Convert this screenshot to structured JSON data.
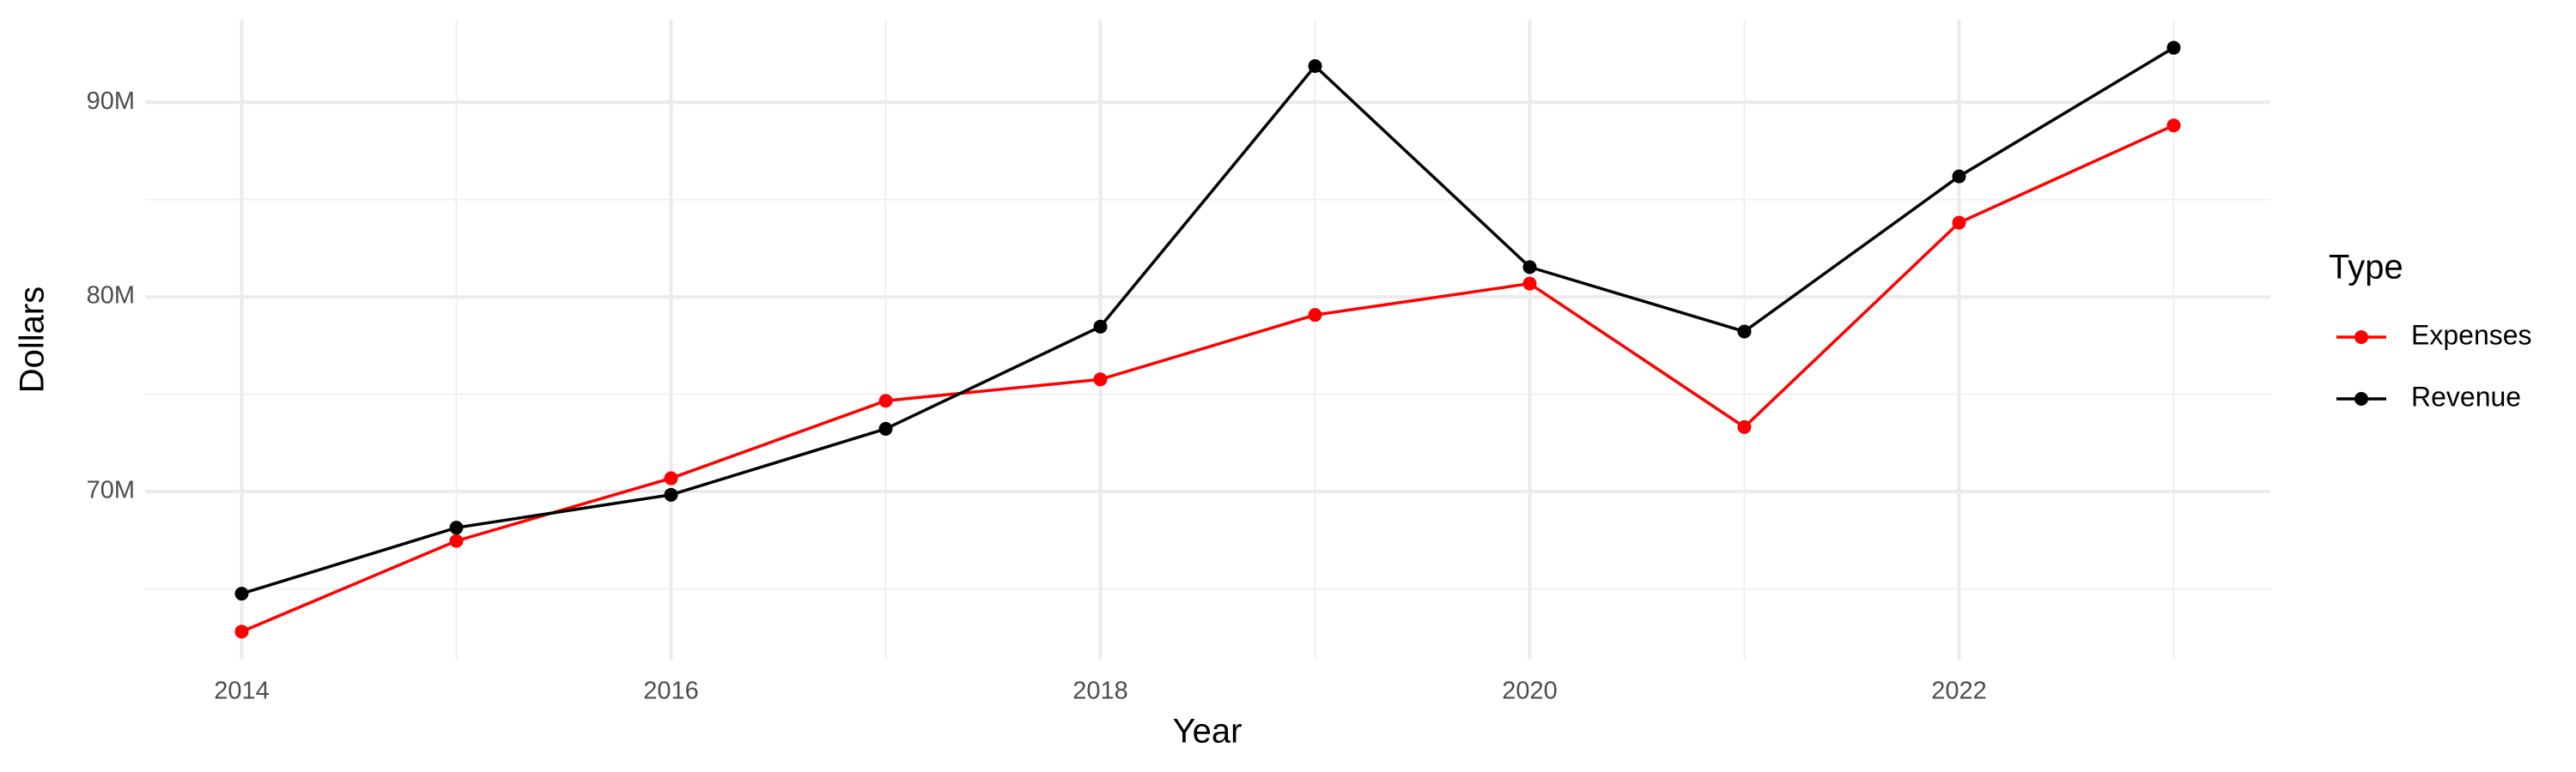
{
  "chart_data": {
    "type": "line",
    "x_label": "Year",
    "y_label": "Dollars",
    "legend_title": "Type",
    "x": [
      2014,
      2015,
      2016,
      2017,
      2018,
      2019,
      2020,
      2021,
      2022,
      2023
    ],
    "series": [
      {
        "name": "Expenses",
        "color": "#ff0000",
        "values": [
          62800000,
          67460000,
          70680000,
          74660000,
          75760000,
          79070000,
          80680000,
          73310000,
          83810000,
          88810000
        ]
      },
      {
        "name": "Revenue",
        "color": "#000000",
        "values": [
          64750000,
          68140000,
          69830000,
          73220000,
          78470000,
          91860000,
          81530000,
          78220000,
          86190000,
          92800000
        ]
      }
    ],
    "xlim": [
      2013.55,
      2023.45
    ],
    "xticks": [
      2014,
      2016,
      2018,
      2020,
      2022
    ],
    "ylim": [
      61360000,
      94240000
    ],
    "yticks": [
      {
        "value": 70000000,
        "label": "70M"
      },
      {
        "value": 80000000,
        "label": "80M"
      },
      {
        "value": 90000000,
        "label": "90M"
      }
    ],
    "grid": true,
    "legend_position": "right"
  }
}
